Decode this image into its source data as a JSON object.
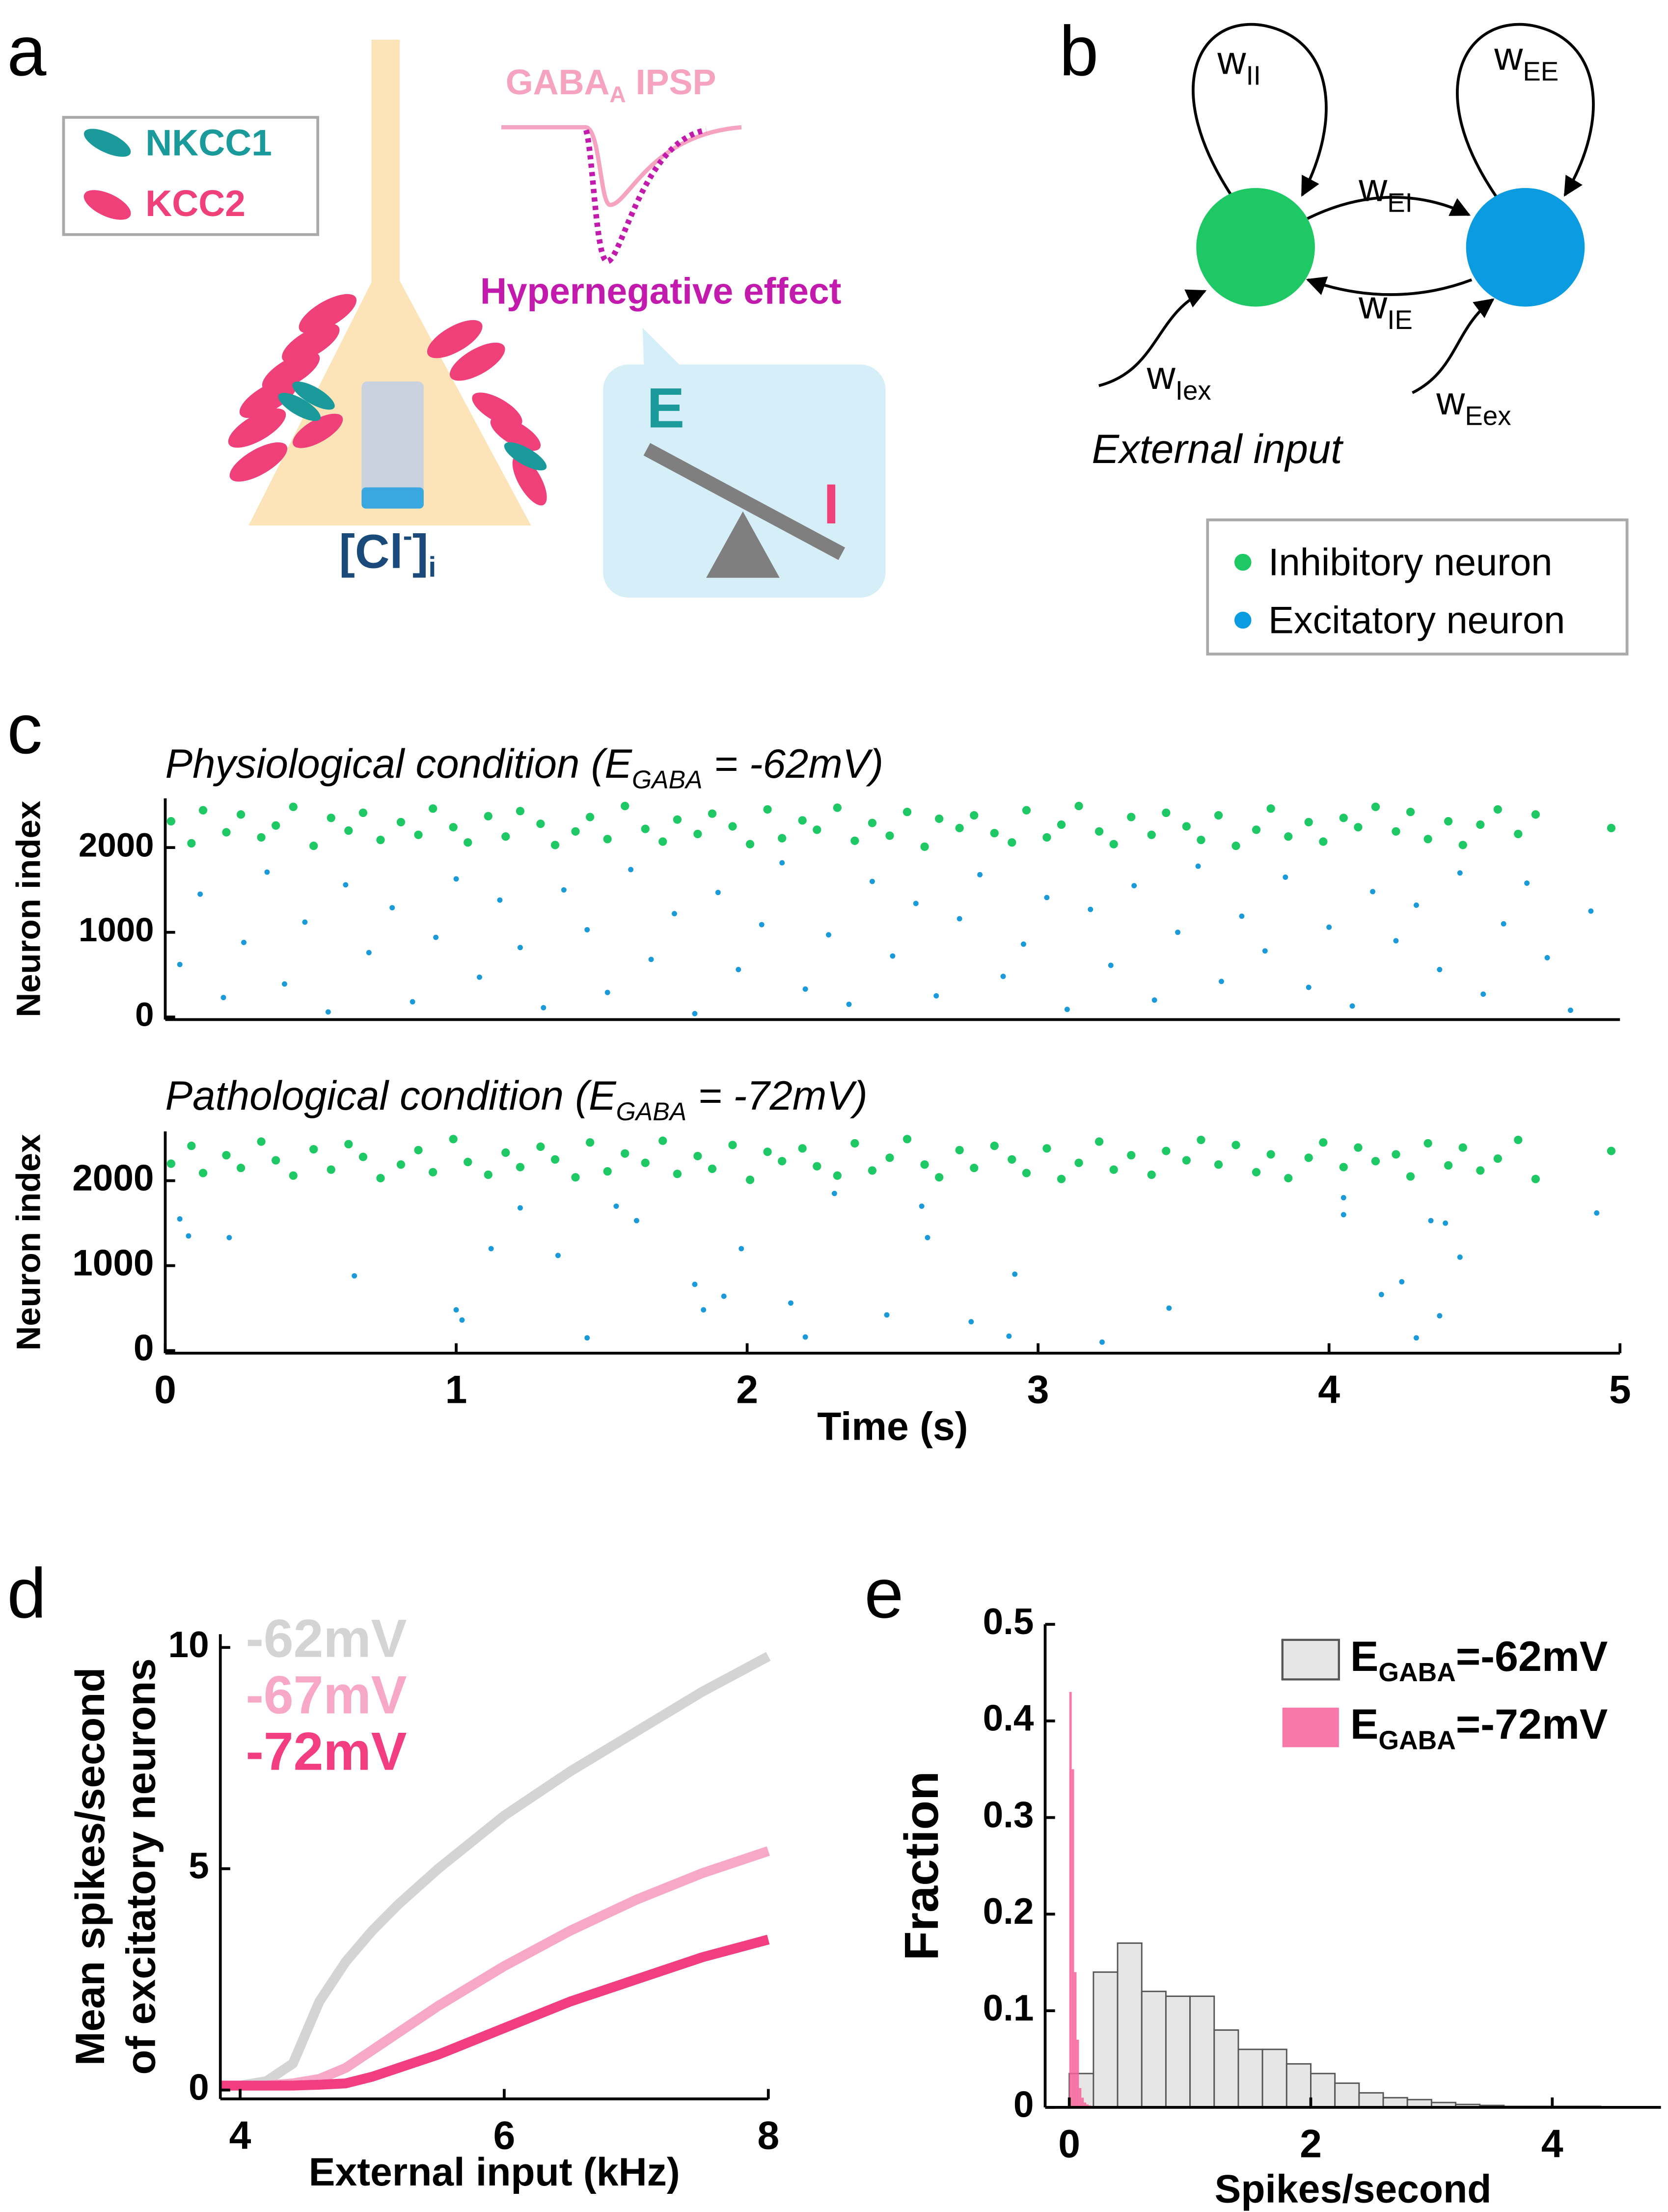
{
  "panel_labels": [
    "a",
    "b",
    "c",
    "d",
    "e"
  ],
  "diagram_a": {
    "legend": [
      "NKCC1",
      "KCC2"
    ],
    "ipsp_label": [
      "GABA",
      "A",
      " IPSP"
    ],
    "effect": "Hypernegative effect",
    "balance": [
      "E",
      "I"
    ],
    "chloride": [
      "[Cl",
      "-",
      "]",
      "i"
    ]
  },
  "diagram_b": {
    "weights": [
      [
        "w",
        "II"
      ],
      [
        "w",
        "EE"
      ],
      [
        "w",
        "EI"
      ],
      [
        "w",
        "IE"
      ],
      [
        "w",
        "Iex"
      ],
      [
        "w",
        "Eex"
      ]
    ],
    "external": "External input",
    "legend": [
      "Inhibitory neuron",
      "Excitatory neuron"
    ]
  },
  "chart_data": [
    {
      "type": "scatter",
      "title_parts": [
        "Physiological condition (E",
        "GABA",
        " = -62mV)"
      ],
      "ylabel": "Neuron index",
      "xlim": [
        0,
        5
      ],
      "ylim": [
        -30,
        2580
      ],
      "yticks": [
        0,
        1000,
        2000
      ],
      "series": [
        {
          "color": "#1ec864",
          "x": [
            0.02,
            0.09,
            0.13,
            0.21,
            0.26,
            0.33,
            0.38,
            0.44,
            0.51,
            0.57,
            0.63,
            0.68,
            0.74,
            0.81,
            0.87,
            0.92,
            0.99,
            1.04,
            1.11,
            1.17,
            1.22,
            1.29,
            1.34,
            1.41,
            1.46,
            1.52,
            1.58,
            1.65,
            1.71,
            1.76,
            1.83,
            1.88,
            1.95,
            2.01,
            2.07,
            2.12,
            2.19,
            2.24,
            2.31,
            2.37,
            2.43,
            2.49,
            2.55,
            2.61,
            2.66,
            2.73,
            2.78,
            2.85,
            2.91,
            2.96,
            3.03,
            3.08,
            3.14,
            3.21,
            3.26,
            3.32,
            3.39,
            3.44,
            3.51,
            3.56,
            3.62,
            3.68,
            3.75,
            3.8,
            3.86,
            3.93,
            3.98,
            4.05,
            4.1,
            4.16,
            4.23,
            4.28,
            4.34,
            4.41,
            4.46,
            4.52,
            4.58,
            4.65,
            4.71,
            4.97
          ],
          "values": [
            2310,
            2050,
            2440,
            2180,
            2390,
            2120,
            2260,
            2480,
            2020,
            2350,
            2200,
            2410,
            2090,
            2300,
            2150,
            2460,
            2240,
            2060,
            2370,
            2130,
            2430,
            2280,
            2030,
            2190,
            2360,
            2100,
            2490,
            2220,
            2070,
            2330,
            2160,
            2400,
            2250,
            2040,
            2450,
            2110,
            2320,
            2210,
            2470,
            2080,
            2290,
            2140,
            2420,
            2010,
            2340,
            2230,
            2380,
            2170,
            2060,
            2440,
            2120,
            2270,
            2490,
            2190,
            2040,
            2360,
            2150,
            2410,
            2250,
            2090,
            2380,
            2020,
            2210,
            2460,
            2130,
            2300,
            2070,
            2350,
            2240,
            2480,
            2190,
            2420,
            2100,
            2310,
            2030,
            2270,
            2450,
            2160,
            2390,
            2230
          ]
        },
        {
          "color": "#1a9ad8",
          "x": [
            0.05,
            0.12,
            0.2,
            0.27,
            0.35,
            0.41,
            0.48,
            0.56,
            0.62,
            0.7,
            0.78,
            0.85,
            0.93,
            1.0,
            1.08,
            1.15,
            1.22,
            1.3,
            1.37,
            1.45,
            1.52,
            1.6,
            1.67,
            1.75,
            1.82,
            1.9,
            1.97,
            2.05,
            2.12,
            2.2,
            2.28,
            2.35,
            2.43,
            2.5,
            2.58,
            2.65,
            2.73,
            2.8,
            2.88,
            2.95,
            3.03,
            3.1,
            3.18,
            3.25,
            3.33,
            3.4,
            3.48,
            3.55,
            3.63,
            3.7,
            3.78,
            3.85,
            3.93,
            4.0,
            4.08,
            4.15,
            4.23,
            4.3,
            4.38,
            4.45,
            4.53,
            4.6,
            4.68,
            4.75,
            4.83,
            4.9
          ],
          "values": [
            620,
            1450,
            230,
            880,
            1710,
            390,
            1120,
            60,
            1560,
            760,
            1290,
            180,
            940,
            1630,
            470,
            1380,
            820,
            110,
            1500,
            1030,
            290,
            1740,
            680,
            1220,
            40,
            1470,
            560,
            1090,
            1820,
            330,
            970,
            150,
            1600,
            720,
            1340,
            250,
            1160,
            1680,
            480,
            860,
            1410,
            90,
            1270,
            610,
            1550,
            200,
            1000,
            1780,
            420,
            1190,
            780,
            1650,
            350,
            1060,
            130,
            1480,
            900,
            1320,
            560,
            1700,
            270,
            1100,
            1580,
            700,
            80,
            1250
          ]
        }
      ]
    },
    {
      "type": "scatter",
      "title_parts": [
        "Pathological condition (E",
        "GABA",
        " = -72mV)"
      ],
      "ylabel": "Neuron index",
      "xlabel": "Time (s)",
      "xlim": [
        0,
        5
      ],
      "ylim": [
        -30,
        2580
      ],
      "yticks": [
        0,
        1000,
        2000
      ],
      "xticks": [
        0,
        1,
        2,
        3,
        4,
        5
      ],
      "series": [
        {
          "color": "#1ec864",
          "x": [
            0.02,
            0.09,
            0.13,
            0.21,
            0.26,
            0.33,
            0.38,
            0.44,
            0.51,
            0.57,
            0.63,
            0.68,
            0.74,
            0.81,
            0.87,
            0.92,
            0.99,
            1.04,
            1.11,
            1.17,
            1.22,
            1.29,
            1.34,
            1.41,
            1.46,
            1.52,
            1.58,
            1.65,
            1.71,
            1.76,
            1.83,
            1.88,
            1.95,
            2.01,
            2.07,
            2.12,
            2.19,
            2.24,
            2.31,
            2.37,
            2.43,
            2.49,
            2.55,
            2.61,
            2.66,
            2.73,
            2.78,
            2.85,
            2.91,
            2.96,
            3.03,
            3.08,
            3.14,
            3.21,
            3.26,
            3.32,
            3.39,
            3.44,
            3.51,
            3.56,
            3.62,
            3.68,
            3.75,
            3.8,
            3.86,
            3.93,
            3.98,
            4.05,
            4.1,
            4.16,
            4.23,
            4.28,
            4.34,
            4.41,
            4.46,
            4.52,
            4.58,
            4.65,
            4.71,
            4.97
          ],
          "values": [
            2200,
            2410,
            2090,
            2300,
            2150,
            2460,
            2240,
            2060,
            2370,
            2130,
            2430,
            2280,
            2030,
            2190,
            2360,
            2100,
            2490,
            2220,
            2070,
            2330,
            2160,
            2400,
            2250,
            2040,
            2450,
            2110,
            2320,
            2210,
            2470,
            2080,
            2290,
            2140,
            2420,
            2010,
            2340,
            2230,
            2380,
            2170,
            2060,
            2440,
            2120,
            2270,
            2490,
            2190,
            2040,
            2360,
            2150,
            2410,
            2250,
            2090,
            2380,
            2020,
            2210,
            2460,
            2130,
            2300,
            2070,
            2350,
            2240,
            2480,
            2190,
            2420,
            2100,
            2310,
            2030,
            2270,
            2450,
            2160,
            2390,
            2230,
            2310,
            2050,
            2440,
            2180,
            2390,
            2120,
            2260,
            2480,
            2020,
            2350
          ]
        },
        {
          "color": "#1a9ad8",
          "x": [
            0.05,
            0.08,
            0.22,
            0.65,
            1.0,
            1.02,
            1.12,
            1.22,
            1.35,
            1.45,
            1.55,
            1.62,
            1.82,
            1.85,
            1.92,
            1.98,
            2.15,
            2.2,
            2.3,
            2.48,
            2.62,
            2.77,
            2.9,
            2.92,
            3.22,
            3.45,
            4.05,
            4.05,
            4.18,
            4.25,
            4.3,
            4.35,
            4.4,
            4.45,
            4.38,
            4.92,
            2.6
          ],
          "values": [
            1550,
            1350,
            1330,
            880,
            480,
            360,
            1200,
            1680,
            1120,
            150,
            1700,
            1530,
            780,
            480,
            640,
            1200,
            560,
            160,
            1850,
            420,
            1330,
            340,
            170,
            900,
            100,
            500,
            1800,
            1600,
            660,
            810,
            150,
            1530,
            1500,
            1100,
            410,
            1620,
            1700
          ]
        }
      ]
    },
    {
      "type": "line",
      "ylabel": [
        "Mean spikes/second",
        "of excitatory neurons"
      ],
      "xlabel": "External input (kHz)",
      "xlim": [
        3.85,
        8
      ],
      "ylim": [
        -0.2,
        10.3
      ],
      "xticks": [
        4,
        6,
        8
      ],
      "yticks": [
        0,
        5,
        10
      ],
      "x": [
        3.85,
        4,
        4.2,
        4.4,
        4.6,
        4.8,
        5,
        5.2,
        5.5,
        6,
        6.5,
        7,
        7.5,
        8
      ],
      "series": [
        {
          "name": "-62mV",
          "color": "#d4d4d4",
          "values": [
            0.1,
            0.1,
            0.2,
            0.6,
            2.0,
            2.9,
            3.6,
            4.2,
            5.0,
            6.2,
            7.2,
            8.1,
            9.0,
            9.8
          ]
        },
        {
          "name": "-67mV",
          "color": "#f7a8c6",
          "values": [
            0.1,
            0.1,
            0.1,
            0.15,
            0.25,
            0.5,
            0.9,
            1.3,
            1.9,
            2.8,
            3.6,
            4.3,
            4.9,
            5.4
          ]
        },
        {
          "name": "-72mV",
          "color": "#f23d80",
          "values": [
            0.1,
            0.1,
            0.1,
            0.1,
            0.12,
            0.15,
            0.3,
            0.5,
            0.8,
            1.4,
            2.0,
            2.5,
            3.0,
            3.4
          ]
        }
      ]
    },
    {
      "type": "histogram",
      "ylabel": "Fraction",
      "xlabel": "Spikes/second",
      "xlim": [
        -0.2,
        4.9
      ],
      "ylim": [
        0,
        0.5
      ],
      "xticks": [
        0,
        2,
        4
      ],
      "yticks": [
        0,
        0.1,
        0.2,
        0.3,
        0.4,
        0.5
      ],
      "series": [
        {
          "name_parts": [
            "E",
            "GABA",
            "=-62mV"
          ],
          "color": "#e6e6e6",
          "edgecolor": "#555555",
          "bins": [
            0,
            0.2,
            0.4,
            0.6,
            0.8,
            1.0,
            1.2,
            1.4,
            1.6,
            1.8,
            2.0,
            2.2,
            2.4,
            2.6,
            2.8,
            3.0,
            3.2,
            3.4,
            3.6,
            3.8,
            4.0,
            4.2,
            4.4
          ],
          "values": [
            0.035,
            0.14,
            0.17,
            0.12,
            0.115,
            0.115,
            0.08,
            0.06,
            0.06,
            0.045,
            0.035,
            0.025,
            0.015,
            0.01,
            0.008,
            0.005,
            0.003,
            0.002,
            0.001,
            0.001,
            0.001,
            0.001
          ]
        },
        {
          "name_parts": [
            "E",
            "GABA",
            "=-72mV"
          ],
          "color": "#f7609a",
          "bins": [
            0,
            0.02,
            0.04,
            0.06,
            0.08,
            0.1,
            0.12,
            0.14,
            0.16,
            0.18,
            0.2
          ],
          "values": [
            0.43,
            0.35,
            0.14,
            0.07,
            0.02,
            0.01,
            0.005,
            0.003,
            0.002,
            0.001
          ]
        }
      ]
    }
  ]
}
